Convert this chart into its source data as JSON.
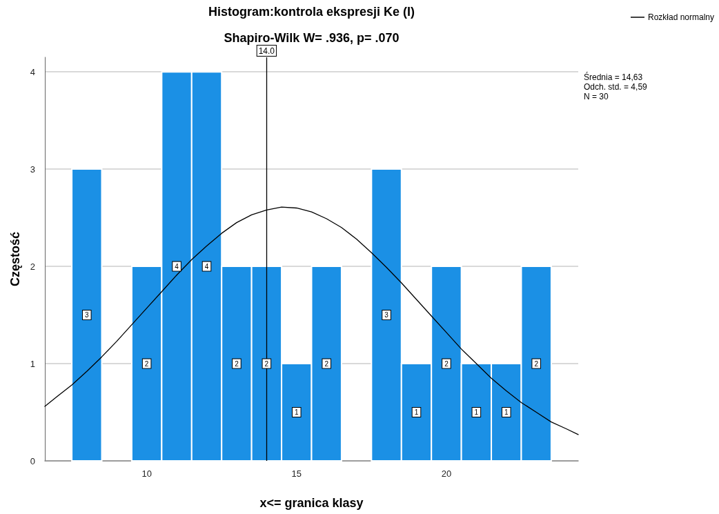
{
  "chart_data": {
    "type": "histogram",
    "title": "Histogram:kontrola ekspresji Ke (I)",
    "subtitle": "Shapiro-Wilk W= .936, p= .070",
    "xlabel": "x<= granica klasy",
    "ylabel": "Częstość",
    "bins": [
      7.5,
      8.5,
      9.5,
      10.5,
      11.5,
      12.5,
      13.5,
      14.5,
      15.5,
      16.5,
      17.5,
      18.5,
      19.5,
      20.5,
      21.5,
      22.5,
      23.5
    ],
    "series": [
      {
        "color": "#1b90e5",
        "values": [
          3,
          0,
          2,
          4,
          4,
          2,
          2,
          1,
          2,
          0,
          3,
          1,
          2,
          1,
          1,
          2
        ],
        "value_labels": [
          "3",
          null,
          "2",
          "4",
          "4",
          "2",
          "2",
          "1",
          "2",
          null,
          "3",
          "1",
          "2",
          "1",
          "1",
          "2"
        ]
      },
      {
        "type": "line",
        "name": "Rozkład normalny",
        "color": "#000000",
        "x": [
          6.6,
          7,
          7.5,
          8,
          8.5,
          9,
          9.5,
          10,
          10.5,
          11,
          11.5,
          12,
          12.5,
          13,
          13.5,
          14,
          14.5,
          15,
          15.5,
          16,
          16.5,
          17,
          17.5,
          18,
          18.5,
          19,
          19.5,
          20,
          20.5,
          21,
          21.5,
          22,
          22.5,
          23,
          23.5,
          24,
          24.4
        ],
        "values": [
          0.56,
          0.66,
          0.78,
          0.92,
          1.07,
          1.23,
          1.4,
          1.57,
          1.74,
          1.91,
          2.07,
          2.21,
          2.34,
          2.45,
          2.53,
          2.58,
          2.61,
          2.6,
          2.56,
          2.49,
          2.4,
          2.28,
          2.14,
          1.99,
          1.83,
          1.66,
          1.49,
          1.32,
          1.15,
          1.0,
          0.85,
          0.72,
          0.6,
          0.5,
          0.4,
          0.33,
          0.27
        ]
      }
    ],
    "xlim": [
      6.6,
      24.4
    ],
    "xticks": [
      10,
      15,
      20
    ],
    "ylim": [
      0,
      4.15
    ],
    "yticks": [
      0,
      1,
      2,
      3,
      4
    ],
    "grid": "y",
    "legend": "top right",
    "marker": "none",
    "ref_lines": [
      {
        "axis": "x",
        "value": 14,
        "label": "14.0"
      }
    ],
    "annotations": [
      "Średnia = 14,63",
      "Odch. std. = 4,59",
      "N = 30"
    ]
  }
}
